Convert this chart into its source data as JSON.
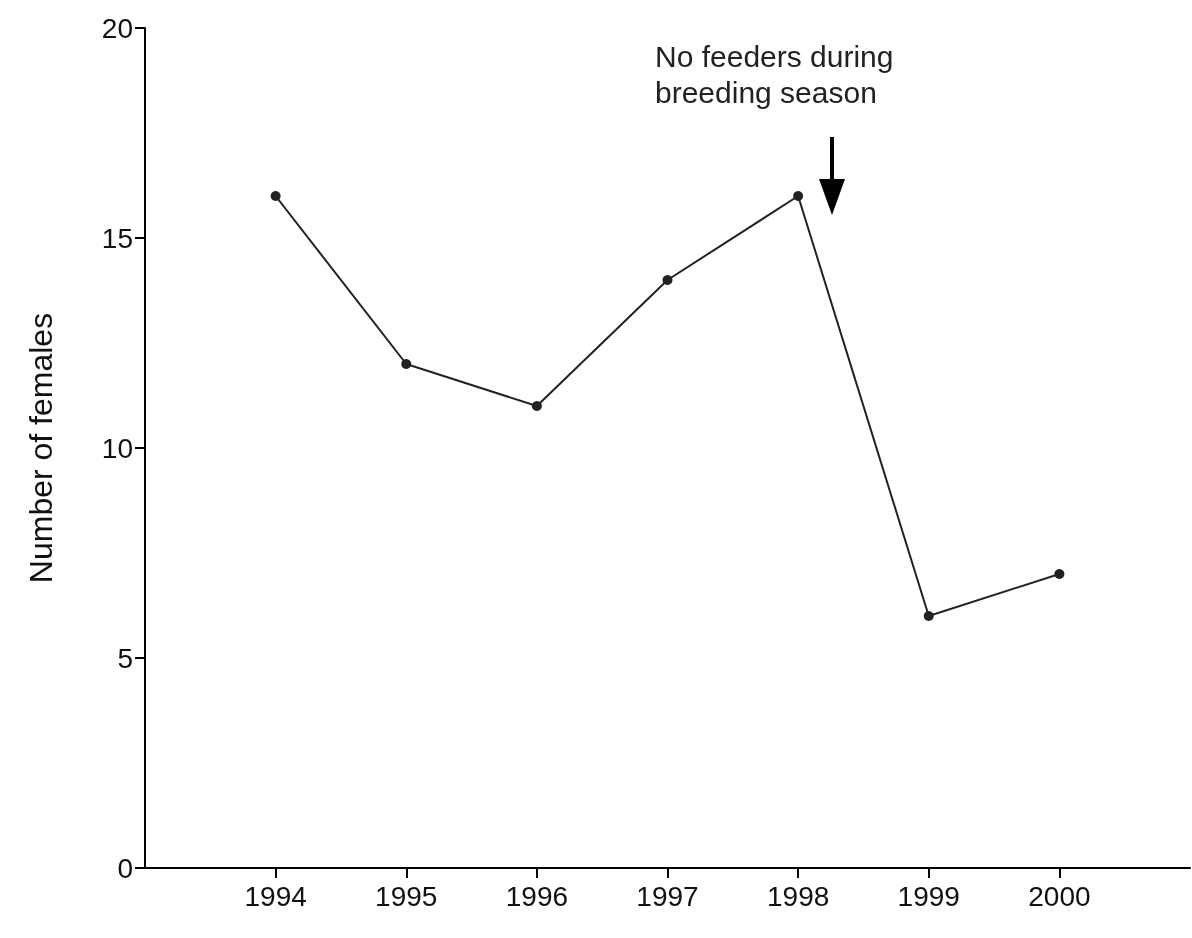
{
  "chart_data": {
    "type": "line",
    "ylabel": "Number of females",
    "x": [
      1994,
      1995,
      1996,
      1997,
      1998,
      1999,
      2000
    ],
    "series": [
      {
        "color": "#222222",
        "values": [
          16,
          12,
          11,
          14,
          16,
          6,
          7
        ]
      }
    ],
    "xlim": [
      1993,
      2001
    ],
    "xticks": [
      1994,
      1995,
      1996,
      1997,
      1998,
      1999,
      2000
    ],
    "ylim": [
      0,
      20
    ],
    "yticks": [
      0,
      5,
      10,
      15,
      20
    ],
    "annotations": [
      "No feeders during breeding season"
    ],
    "marker": "circle",
    "line_style": "solid"
  }
}
